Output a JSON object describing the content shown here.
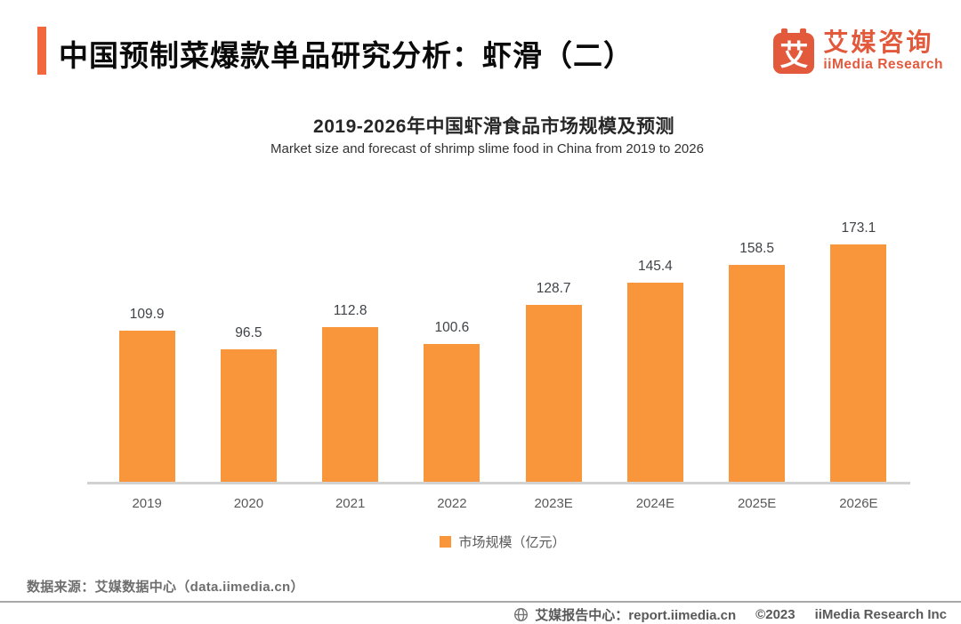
{
  "header": {
    "title": "中国预制菜爆款单品研究分析：虾滑（二）",
    "logo": {
      "glyph": "艾",
      "name_cn": "艾媒咨询",
      "name_en": "iiMedia Research"
    }
  },
  "chart": {
    "title": "2019-2026年中国虾滑食品市场规模及预测",
    "subtitle": "Market size and forecast of shrimp slime food in China from 2019 to 2026",
    "legend_label": "市场规模（亿元）"
  },
  "chart_data": {
    "type": "bar",
    "categories": [
      "2019",
      "2020",
      "2021",
      "2022",
      "2023E",
      "2024E",
      "2025E",
      "2026E"
    ],
    "values": [
      109.9,
      96.5,
      112.8,
      100.6,
      128.7,
      145.4,
      158.5,
      173.1
    ],
    "title": "2019-2026年中国虾滑食品市场规模及预测",
    "xlabel": "",
    "ylabel": "",
    "unit": "亿元",
    "ylim": [
      0,
      180
    ],
    "grid": false,
    "legend": [
      "市场规模（亿元）"
    ],
    "legend_position": "bottom",
    "bar_color": "#F9963B"
  },
  "footer": {
    "source": "数据来源：艾媒数据中心（data.iimedia.cn）",
    "report_center": "艾媒报告中心：report.iimedia.cn",
    "copyright": "©2023",
    "company": "iiMedia Research Inc"
  },
  "colors": {
    "bar": "#F9963B",
    "brand": "#E2593C",
    "accent_bar": "#F2683C",
    "axis_line": "#d2d2d2",
    "divider": "#a8a8a8",
    "muted_text": "#595959"
  }
}
